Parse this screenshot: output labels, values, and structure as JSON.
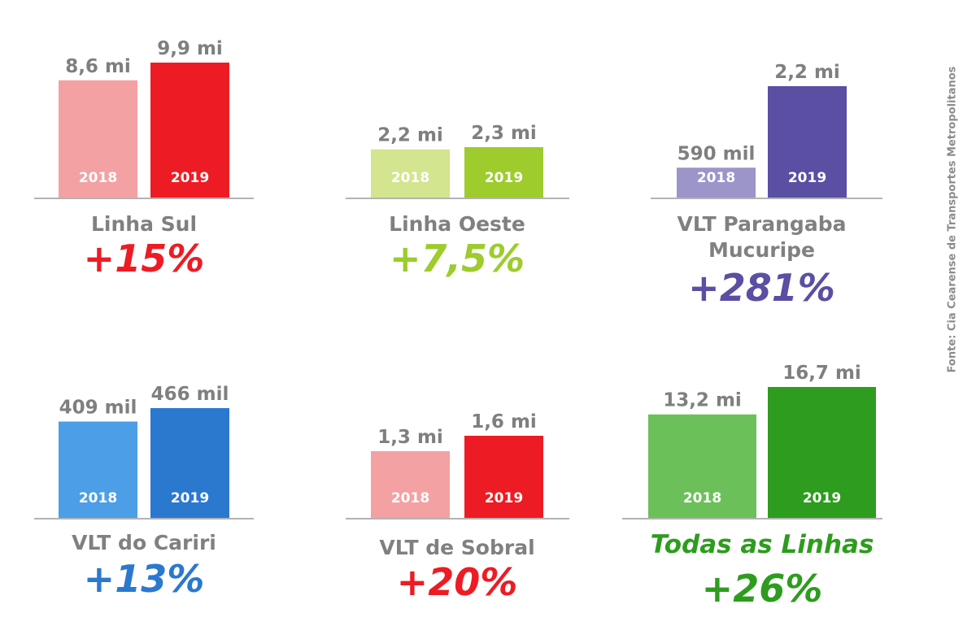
{
  "source": "Fonte: Cia Cearense de Transportes Metropolitanos",
  "chart_data": [
    {
      "type": "bar",
      "title": "Linha Sul",
      "change": "+15%",
      "categories": [
        "2018",
        "2019"
      ],
      "values": [
        8.6,
        9.9
      ],
      "value_labels": [
        "8,6 mi",
        "9,9 mi"
      ],
      "colors": [
        "#f4a1a3",
        "#ed1c24"
      ],
      "accent": "#ed1c24",
      "title_emphasis": false
    },
    {
      "type": "bar",
      "title": "Linha Oeste",
      "change": "+7,5%",
      "categories": [
        "2018",
        "2019"
      ],
      "values": [
        2.2,
        2.3
      ],
      "value_labels": [
        "2,2 mi",
        "2,3 mi"
      ],
      "colors": [
        "#d3e58e",
        "#9dcc2c"
      ],
      "accent": "#9dcc2c",
      "title_emphasis": false
    },
    {
      "type": "bar",
      "title": [
        "VLT Parangaba",
        "Mucuripe"
      ],
      "change": "+281%",
      "categories": [
        "2018",
        "2019"
      ],
      "values": [
        0.59,
        2.2
      ],
      "value_labels": [
        "590 mil",
        "2,2 mi"
      ],
      "colors": [
        "#9b95c9",
        "#5a4fa3"
      ],
      "accent": "#5a4fa3",
      "title_emphasis": false
    },
    {
      "type": "bar",
      "title": "VLT do Cariri",
      "change": "+13%",
      "categories": [
        "2018",
        "2019"
      ],
      "values": [
        409,
        466
      ],
      "value_labels": [
        "409 mil",
        "466 mil"
      ],
      "colors": [
        "#4c9fe6",
        "#2b78cf"
      ],
      "accent": "#2b78cf",
      "title_emphasis": false
    },
    {
      "type": "bar",
      "title": "VLT de Sobral",
      "change": "+20%",
      "categories": [
        "2018",
        "2019"
      ],
      "values": [
        1.3,
        1.6
      ],
      "value_labels": [
        "1,3 mi",
        "1,6 mi"
      ],
      "colors": [
        "#f4a1a3",
        "#ed1c24"
      ],
      "accent": "#ed1c24",
      "title_emphasis": false
    },
    {
      "type": "bar",
      "title": "Todas as Linhas",
      "change": "+26%",
      "categories": [
        "2018",
        "2019"
      ],
      "values": [
        13.2,
        16.7
      ],
      "value_labels": [
        "13,2 mi",
        "16,7 mi"
      ],
      "colors": [
        "#6cc05a",
        "#2e9c1e"
      ],
      "accent": "#2e9c1e",
      "title_emphasis": true
    }
  ]
}
